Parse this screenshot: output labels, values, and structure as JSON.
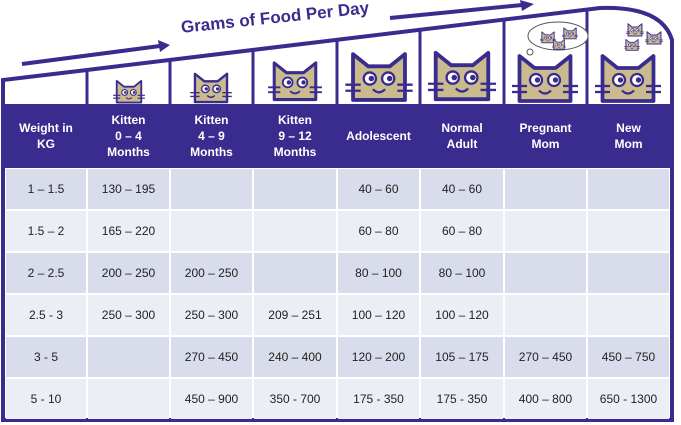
{
  "header": {
    "title": "Grams of Food Per Day"
  },
  "table": {
    "columns": [
      "Weight in\nKG",
      "Kitten\n0 – 4\nMonths",
      "Kitten\n4 – 9\nMonths",
      "Kitten\n9 – 12\nMonths",
      "Adolescent",
      "Normal\nAdult",
      "Pregnant\nMom",
      "New\nMom"
    ],
    "rows": [
      [
        "1 – 1.5",
        "130 – 195",
        null,
        null,
        "40 – 60",
        "40 – 60",
        null,
        null
      ],
      [
        "1.5 – 2",
        "165 – 220",
        null,
        null,
        "60 – 80",
        "60 – 80",
        null,
        null
      ],
      [
        "2 – 2.5",
        "200 – 250",
        "200 – 250",
        null,
        "80 – 100",
        "80 – 100",
        null,
        null
      ],
      [
        "2.5 - 3",
        "250 – 300",
        "250 – 300",
        "209 – 251",
        "100 – 120",
        "100 – 120",
        null,
        null
      ],
      [
        "3 - 5",
        null,
        "270 – 450",
        "240 – 400",
        "120 – 200",
        "105 – 175",
        "270 – 450",
        "450 – 750"
      ],
      [
        "5 - 10",
        null,
        "450 – 900",
        "350 - 700",
        "175 - 350",
        "175 - 350",
        "400 – 800",
        "650 - 1300"
      ]
    ]
  }
}
